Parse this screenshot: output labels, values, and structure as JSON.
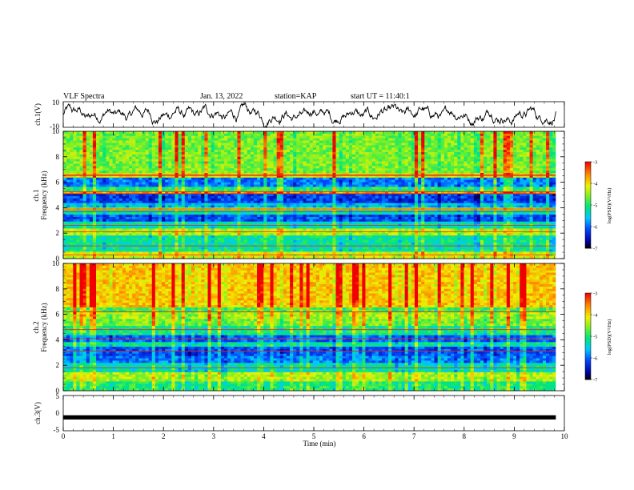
{
  "header": {
    "title": "VLF Spectra",
    "date": "Jan. 13, 2022",
    "station": "station=KAP",
    "start": "start UT = 11:40:1"
  },
  "chart_data": [
    {
      "type": "line",
      "panel": "ch1-waveform",
      "ylabel": "ch.1(V)",
      "ylim": [
        -10,
        10
      ],
      "yticks": [
        "10",
        "-10"
      ],
      "xlim": [
        0,
        10
      ],
      "x_end": 9.83,
      "description_values": "noisy waveform fluctuating roughly between -9 and 9 V",
      "mean": 0,
      "amplitude": 7
    },
    {
      "type": "heatmap",
      "panel": "ch1-spectrogram",
      "ylabel_lines": [
        "ch.1",
        "Frequency (kHz)"
      ],
      "ylim": [
        0,
        10
      ],
      "yticks": [
        "0",
        "2",
        "4",
        "6",
        "8",
        "10"
      ],
      "xlim": [
        0,
        10
      ],
      "x_end": 9.83,
      "colorbar": {
        "label": "log(PSD)(V²/Hz)",
        "ticks": [
          "-3",
          "-4",
          "-5",
          "-6",
          "-7"
        ],
        "range": [
          -7,
          -3
        ]
      },
      "bands": [
        {
          "f0": 0.0,
          "f1": 0.5,
          "level": -4.2
        },
        {
          "f0": 0.5,
          "f1": 1.9,
          "level": -5.2
        },
        {
          "f0": 1.9,
          "f1": 2.3,
          "level": -4.4
        },
        {
          "f0": 2.3,
          "f1": 2.9,
          "level": -5.3
        },
        {
          "f0": 2.9,
          "f1": 3.4,
          "level": -6.1
        },
        {
          "f0": 3.4,
          "f1": 3.8,
          "level": -5.3
        },
        {
          "f0": 3.8,
          "f1": 4.0,
          "level": -4.3
        },
        {
          "f0": 4.0,
          "f1": 4.4,
          "level": -5.6
        },
        {
          "f0": 4.4,
          "f1": 5.0,
          "level": -6.2
        },
        {
          "f0": 5.0,
          "f1": 5.3,
          "level": -3.6
        },
        {
          "f0": 5.3,
          "f1": 5.7,
          "level": -5.0
        },
        {
          "f0": 5.7,
          "f1": 6.3,
          "level": -5.9
        },
        {
          "f0": 6.3,
          "f1": 6.8,
          "level": -4.1
        },
        {
          "f0": 6.8,
          "f1": 10.0,
          "level": -4.6
        }
      ],
      "lines_khz": [
        0.3,
        1.0,
        2.1,
        2.6,
        3.7,
        3.9,
        5.1,
        5.25,
        6.5,
        6.6
      ]
    },
    {
      "type": "heatmap",
      "panel": "ch2-spectrogram",
      "ylabel_lines": [
        "ch.2",
        "Frequency (kHz)"
      ],
      "ylim": [
        0,
        10
      ],
      "yticks": [
        "0",
        "2",
        "4",
        "6",
        "8",
        "10"
      ],
      "xlim": [
        0,
        10
      ],
      "x_end": 9.83,
      "colorbar": {
        "label": "log(PSD)(V²/Hz)",
        "ticks": [
          "-3",
          "-4",
          "-5",
          "-6",
          "-7"
        ],
        "range": [
          -7,
          -3
        ]
      },
      "bands": [
        {
          "f0": 0.0,
          "f1": 0.8,
          "level": -5.0
        },
        {
          "f0": 0.8,
          "f1": 1.5,
          "level": -4.4
        },
        {
          "f0": 1.5,
          "f1": 2.2,
          "level": -5.3
        },
        {
          "f0": 2.2,
          "f1": 2.8,
          "level": -5.9
        },
        {
          "f0": 2.8,
          "f1": 3.4,
          "level": -6.1
        },
        {
          "f0": 3.4,
          "f1": 3.8,
          "level": -5.2
        },
        {
          "f0": 3.8,
          "f1": 4.4,
          "level": -6.0
        },
        {
          "f0": 4.4,
          "f1": 5.0,
          "level": -5.1
        },
        {
          "f0": 5.0,
          "f1": 5.6,
          "level": -4.6
        },
        {
          "f0": 5.6,
          "f1": 6.2,
          "level": -4.4
        },
        {
          "f0": 6.2,
          "f1": 6.6,
          "level": -4.8
        },
        {
          "f0": 6.6,
          "f1": 10.0,
          "level": -3.9
        }
      ],
      "lines_khz": [
        1.8,
        3.1,
        4.1,
        4.8,
        6.2
      ]
    },
    {
      "type": "line",
      "panel": "ch3-waveform",
      "ylabel": "ch.3(V)",
      "ylim": [
        -5,
        5
      ],
      "yticks": [
        "5",
        "0",
        "-5"
      ],
      "xlim": [
        0,
        10
      ],
      "x_end": 9.83,
      "mean": -1.2,
      "amplitude": 0.6
    }
  ],
  "x_axis": {
    "label": "Time (min)",
    "ticks": [
      "0",
      "1",
      "2",
      "3",
      "4",
      "5",
      "6",
      "7",
      "8",
      "9",
      "10"
    ]
  }
}
